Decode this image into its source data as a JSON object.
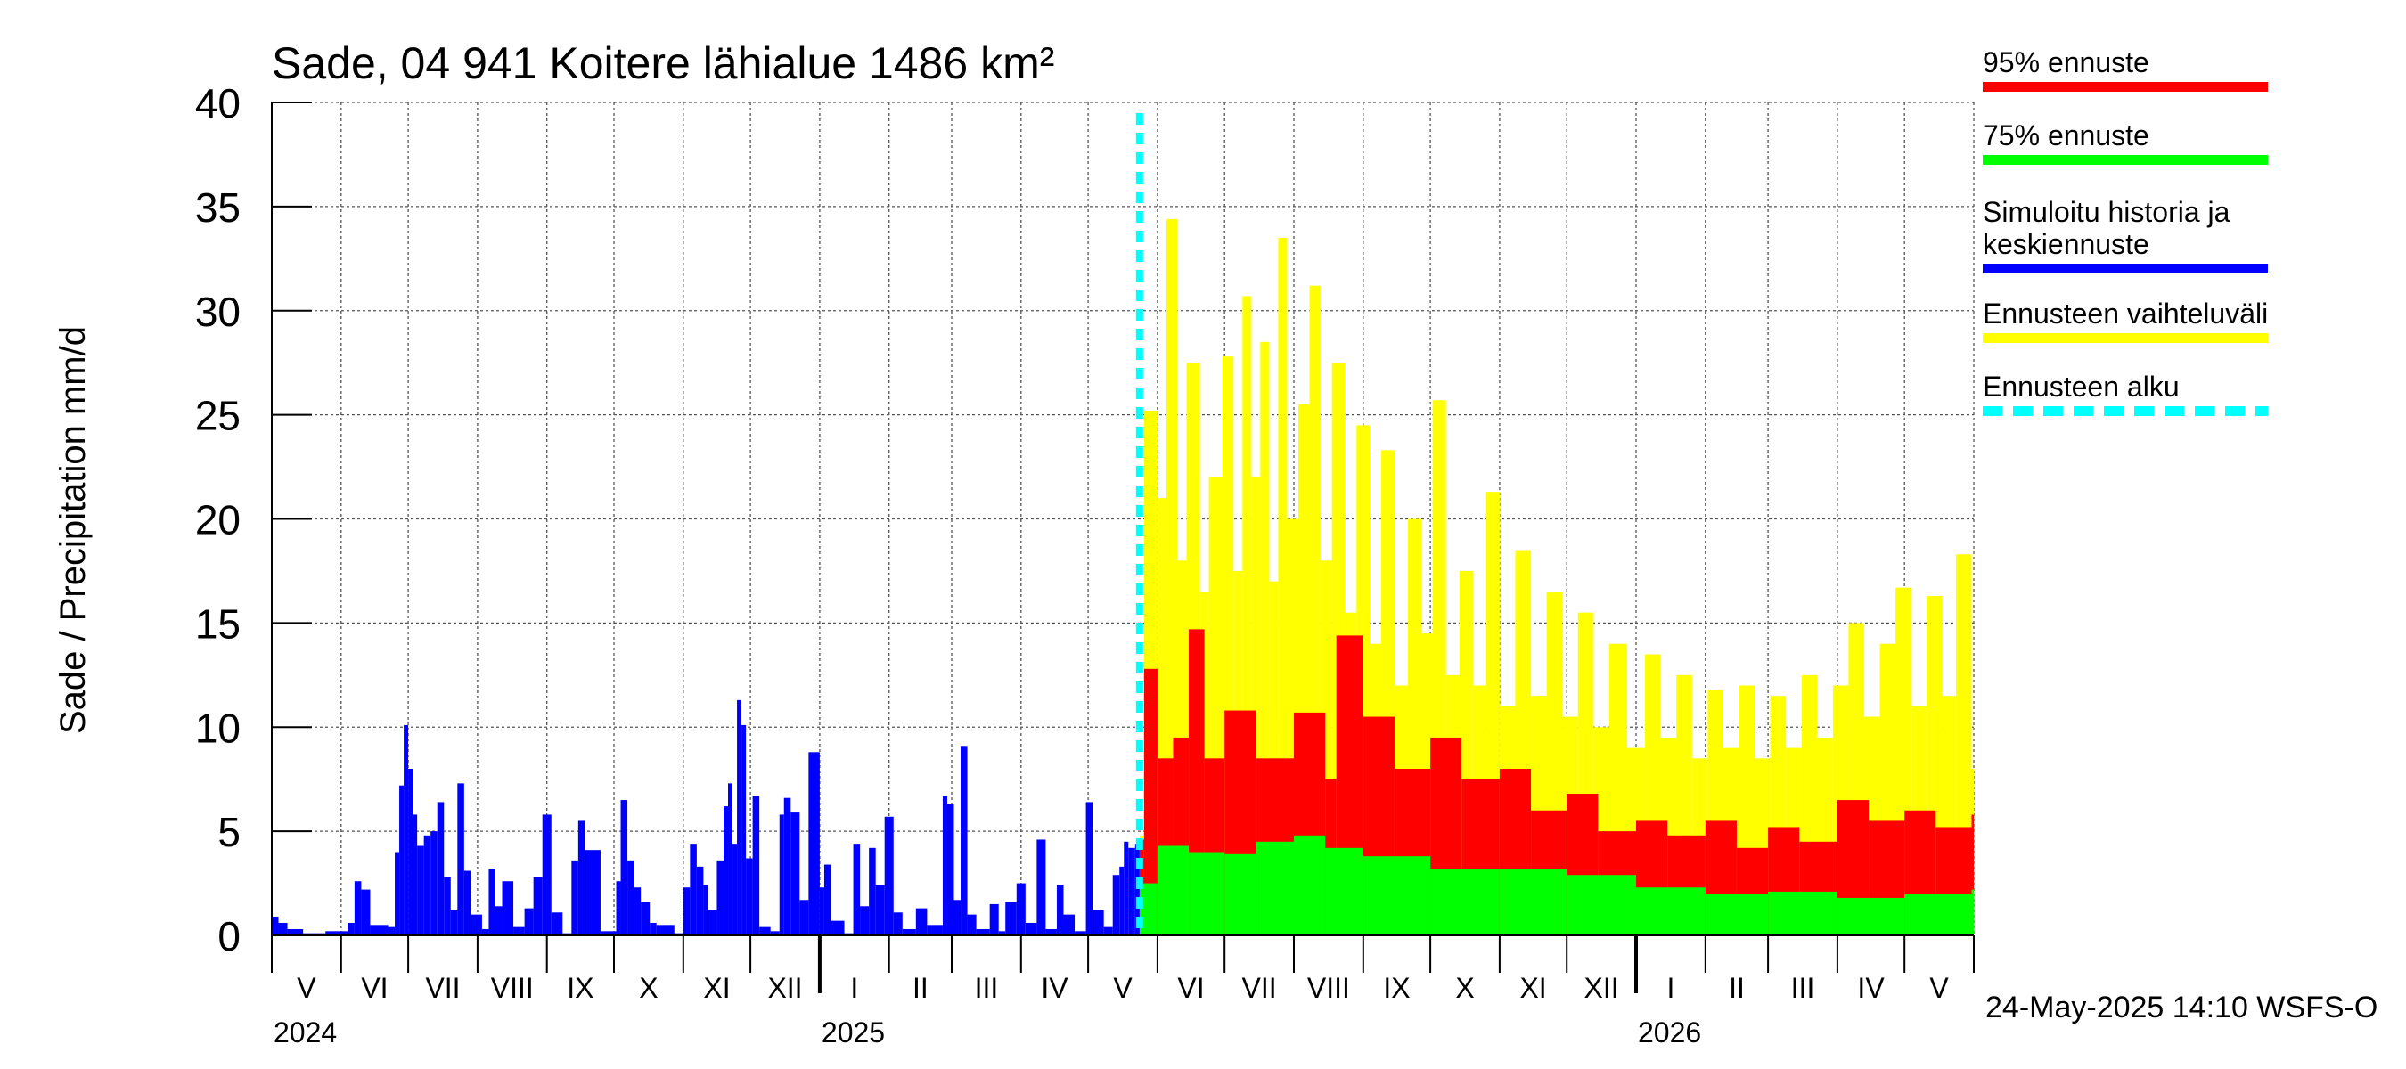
{
  "chart_data": {
    "type": "bar",
    "title": "Sade, 04 941 Koitere lähialue 1486 km²",
    "ylabel": "Sade / Precipitation   mm/d",
    "ylim": [
      0,
      40
    ],
    "yticks": [
      "0",
      "5",
      "10",
      "15",
      "20",
      "25",
      "30",
      "35",
      "40"
    ],
    "grid": true,
    "x_domain": [
      "2024-05-01",
      "2026-05-31"
    ],
    "month_labels": [
      "V",
      "VI",
      "VII",
      "VIII",
      "IX",
      "X",
      "XI",
      "XII",
      "I",
      "II",
      "III",
      "IV",
      "V",
      "VI",
      "VII",
      "VIII",
      "IX",
      "X",
      "XI",
      "XII",
      "I",
      "II",
      "III",
      "IV",
      "V"
    ],
    "year_labels": [
      "2024",
      "2025",
      "2026"
    ],
    "forecast_start": "2025-05-24",
    "series": [
      {
        "name": "Simuloitu historia ja keskiennuste",
        "color": "#0000ff",
        "points": [
          [
            "2024-05-01",
            0.9
          ],
          [
            "2024-05-04",
            0.6
          ],
          [
            "2024-05-08",
            0.3
          ],
          [
            "2024-05-15",
            0.1
          ],
          [
            "2024-05-25",
            0.2
          ],
          [
            "2024-06-04",
            0.6
          ],
          [
            "2024-06-07",
            2.6
          ],
          [
            "2024-06-10",
            2.2
          ],
          [
            "2024-06-14",
            0.5
          ],
          [
            "2024-06-22",
            0.4
          ],
          [
            "2024-06-25",
            4.0
          ],
          [
            "2024-06-27",
            7.2
          ],
          [
            "2024-06-29",
            10.1
          ],
          [
            "2024-07-01",
            8.0
          ],
          [
            "2024-07-03",
            5.8
          ],
          [
            "2024-07-05",
            4.3
          ],
          [
            "2024-07-08",
            4.8
          ],
          [
            "2024-07-11",
            5.0
          ],
          [
            "2024-07-14",
            6.4
          ],
          [
            "2024-07-17",
            2.8
          ],
          [
            "2024-07-20",
            1.2
          ],
          [
            "2024-07-23",
            7.3
          ],
          [
            "2024-07-26",
            3.1
          ],
          [
            "2024-07-29",
            1.0
          ],
          [
            "2024-08-03",
            0.3
          ],
          [
            "2024-08-06",
            3.2
          ],
          [
            "2024-08-09",
            1.4
          ],
          [
            "2024-08-12",
            2.6
          ],
          [
            "2024-08-17",
            0.4
          ],
          [
            "2024-08-22",
            1.3
          ],
          [
            "2024-08-26",
            2.8
          ],
          [
            "2024-08-30",
            5.8
          ],
          [
            "2024-09-03",
            1.1
          ],
          [
            "2024-09-08",
            0.1
          ],
          [
            "2024-09-12",
            3.6
          ],
          [
            "2024-09-15",
            5.5
          ],
          [
            "2024-09-18",
            4.1
          ],
          [
            "2024-09-25",
            0.2
          ],
          [
            "2024-10-02",
            2.6
          ],
          [
            "2024-10-04",
            6.5
          ],
          [
            "2024-10-07",
            3.6
          ],
          [
            "2024-10-10",
            2.3
          ],
          [
            "2024-10-13",
            1.6
          ],
          [
            "2024-10-17",
            0.6
          ],
          [
            "2024-10-20",
            0.5
          ],
          [
            "2024-10-28",
            0.1
          ],
          [
            "2024-11-01",
            2.3
          ],
          [
            "2024-11-04",
            4.4
          ],
          [
            "2024-11-07",
            3.3
          ],
          [
            "2024-11-10",
            2.4
          ],
          [
            "2024-11-12",
            1.2
          ],
          [
            "2024-11-16",
            3.6
          ],
          [
            "2024-11-19",
            6.2
          ],
          [
            "2024-11-21",
            7.3
          ],
          [
            "2024-11-23",
            4.4
          ],
          [
            "2024-11-25",
            11.3
          ],
          [
            "2024-11-27",
            10.1
          ],
          [
            "2024-11-29",
            3.7
          ],
          [
            "2024-12-02",
            6.7
          ],
          [
            "2024-12-05",
            0.4
          ],
          [
            "2024-12-10",
            0.2
          ],
          [
            "2024-12-14",
            5.8
          ],
          [
            "2024-12-16",
            6.6
          ],
          [
            "2024-12-19",
            5.9
          ],
          [
            "2024-12-23",
            1.7
          ],
          [
            "2024-12-27",
            8.8
          ],
          [
            "2025-01-01",
            2.3
          ],
          [
            "2025-01-03",
            3.4
          ],
          [
            "2025-01-06",
            0.7
          ],
          [
            "2025-01-12",
            0.1
          ],
          [
            "2025-01-16",
            4.4
          ],
          [
            "2025-01-19",
            1.4
          ],
          [
            "2025-01-23",
            4.2
          ],
          [
            "2025-01-26",
            2.4
          ],
          [
            "2025-01-30",
            5.7
          ],
          [
            "2025-02-03",
            1.1
          ],
          [
            "2025-02-07",
            0.3
          ],
          [
            "2025-02-13",
            1.3
          ],
          [
            "2025-02-18",
            0.5
          ],
          [
            "2025-02-25",
            6.7
          ],
          [
            "2025-02-27",
            6.3
          ],
          [
            "2025-03-02",
            1.7
          ],
          [
            "2025-03-05",
            9.1
          ],
          [
            "2025-03-08",
            1.0
          ],
          [
            "2025-03-12",
            0.3
          ],
          [
            "2025-03-18",
            1.5
          ],
          [
            "2025-03-22",
            0.2
          ],
          [
            "2025-03-25",
            1.6
          ],
          [
            "2025-03-30",
            2.5
          ],
          [
            "2025-04-03",
            0.6
          ],
          [
            "2025-04-08",
            4.6
          ],
          [
            "2025-04-12",
            0.3
          ],
          [
            "2025-04-17",
            2.4
          ],
          [
            "2025-04-20",
            1.0
          ],
          [
            "2025-04-25",
            0.2
          ],
          [
            "2025-04-30",
            6.4
          ],
          [
            "2025-05-03",
            1.2
          ],
          [
            "2025-05-08",
            0.4
          ],
          [
            "2025-05-12",
            2.9
          ],
          [
            "2025-05-15",
            3.3
          ],
          [
            "2025-05-17",
            4.5
          ],
          [
            "2025-05-19",
            4.2
          ],
          [
            "2025-05-22",
            4.4
          ]
        ]
      },
      {
        "name": "95% ennuste",
        "color": "#ff0000",
        "points": [
          [
            "2025-05-24",
            4.6
          ],
          [
            "2025-05-26",
            12.8
          ],
          [
            "2025-06-01",
            8.5
          ],
          [
            "2025-06-08",
            9.5
          ],
          [
            "2025-06-15",
            14.7
          ],
          [
            "2025-06-22",
            8.5
          ],
          [
            "2025-07-01",
            10.8
          ],
          [
            "2025-07-15",
            8.5
          ],
          [
            "2025-08-01",
            10.7
          ],
          [
            "2025-08-15",
            7.5
          ],
          [
            "2025-08-20",
            14.4
          ],
          [
            "2025-09-01",
            10.5
          ],
          [
            "2025-09-15",
            8.0
          ],
          [
            "2025-10-01",
            9.5
          ],
          [
            "2025-10-15",
            7.5
          ],
          [
            "2025-11-01",
            8.0
          ],
          [
            "2025-11-15",
            6.0
          ],
          [
            "2025-12-01",
            6.8
          ],
          [
            "2025-12-15",
            5.0
          ],
          [
            "2026-01-01",
            5.5
          ],
          [
            "2026-01-15",
            4.8
          ],
          [
            "2026-02-01",
            5.5
          ],
          [
            "2026-02-15",
            4.2
          ],
          [
            "2026-03-01",
            5.2
          ],
          [
            "2026-03-15",
            4.5
          ],
          [
            "2026-04-01",
            6.5
          ],
          [
            "2026-04-15",
            5.5
          ],
          [
            "2026-05-01",
            6.0
          ],
          [
            "2026-05-15",
            5.2
          ],
          [
            "2026-05-31",
            5.8
          ]
        ]
      },
      {
        "name": "75% ennuste",
        "color": "#00ff00",
        "points": [
          [
            "2025-05-24",
            2.5
          ],
          [
            "2025-06-01",
            4.3
          ],
          [
            "2025-06-15",
            4.0
          ],
          [
            "2025-07-01",
            3.9
          ],
          [
            "2025-07-15",
            4.5
          ],
          [
            "2025-08-01",
            4.8
          ],
          [
            "2025-08-15",
            4.2
          ],
          [
            "2025-09-01",
            3.8
          ],
          [
            "2025-10-01",
            3.2
          ],
          [
            "2025-11-01",
            3.2
          ],
          [
            "2025-12-01",
            2.9
          ],
          [
            "2026-01-01",
            2.3
          ],
          [
            "2026-02-01",
            2.0
          ],
          [
            "2026-03-01",
            2.1
          ],
          [
            "2026-04-01",
            1.8
          ],
          [
            "2026-05-01",
            2.0
          ],
          [
            "2026-05-31",
            2.2
          ]
        ]
      },
      {
        "name": "Ennusteen vaihteluväli",
        "color": "#ffff00",
        "points": [
          [
            "2025-05-24",
            4.8
          ],
          [
            "2025-05-26",
            25.2
          ],
          [
            "2025-06-01",
            21.0
          ],
          [
            "2025-06-05",
            34.4
          ],
          [
            "2025-06-10",
            18.0
          ],
          [
            "2025-06-14",
            27.5
          ],
          [
            "2025-06-20",
            16.5
          ],
          [
            "2025-06-24",
            22.0
          ],
          [
            "2025-06-30",
            27.8
          ],
          [
            "2025-07-05",
            17.5
          ],
          [
            "2025-07-09",
            30.7
          ],
          [
            "2025-07-13",
            22.0
          ],
          [
            "2025-07-17",
            28.5
          ],
          [
            "2025-07-21",
            17.0
          ],
          [
            "2025-07-25",
            33.5
          ],
          [
            "2025-07-29",
            20.0
          ],
          [
            "2025-08-03",
            25.5
          ],
          [
            "2025-08-08",
            31.2
          ],
          [
            "2025-08-13",
            18.0
          ],
          [
            "2025-08-18",
            27.5
          ],
          [
            "2025-08-24",
            15.5
          ],
          [
            "2025-08-29",
            24.5
          ],
          [
            "2025-09-04",
            14.0
          ],
          [
            "2025-09-09",
            23.3
          ],
          [
            "2025-09-15",
            12.0
          ],
          [
            "2025-09-21",
            20.0
          ],
          [
            "2025-09-27",
            14.5
          ],
          [
            "2025-10-02",
            25.7
          ],
          [
            "2025-10-08",
            12.5
          ],
          [
            "2025-10-14",
            17.5
          ],
          [
            "2025-10-20",
            12.0
          ],
          [
            "2025-10-26",
            21.3
          ],
          [
            "2025-11-01",
            11.0
          ],
          [
            "2025-11-08",
            18.5
          ],
          [
            "2025-11-15",
            11.5
          ],
          [
            "2025-11-22",
            16.5
          ],
          [
            "2025-11-29",
            10.5
          ],
          [
            "2025-12-06",
            15.5
          ],
          [
            "2025-12-13",
            10.0
          ],
          [
            "2025-12-20",
            14.0
          ],
          [
            "2025-12-28",
            9.0
          ],
          [
            "2026-01-05",
            13.5
          ],
          [
            "2026-01-12",
            9.5
          ],
          [
            "2026-01-19",
            12.5
          ],
          [
            "2026-01-26",
            8.5
          ],
          [
            "2026-02-02",
            11.8
          ],
          [
            "2026-02-09",
            9.0
          ],
          [
            "2026-02-16",
            12.0
          ],
          [
            "2026-02-23",
            8.5
          ],
          [
            "2026-03-02",
            11.5
          ],
          [
            "2026-03-09",
            9.0
          ],
          [
            "2026-03-16",
            12.5
          ],
          [
            "2026-03-23",
            9.5
          ],
          [
            "2026-03-30",
            12.0
          ],
          [
            "2026-04-06",
            15.0
          ],
          [
            "2026-04-13",
            10.5
          ],
          [
            "2026-04-20",
            14.0
          ],
          [
            "2026-04-27",
            16.7
          ],
          [
            "2026-05-04",
            11.0
          ],
          [
            "2026-05-11",
            16.3
          ],
          [
            "2026-05-18",
            11.5
          ],
          [
            "2026-05-24",
            18.3
          ],
          [
            "2026-05-31",
            8.0
          ]
        ]
      }
    ]
  },
  "legend": [
    {
      "label": "95% ennuste",
      "color": "#ff0000",
      "style": "solid"
    },
    {
      "label": "75% ennuste",
      "color": "#00ff00",
      "style": "solid"
    },
    {
      "label": "Simuloitu historia ja keskiennuste",
      "color": "#0000ff",
      "style": "solid"
    },
    {
      "label": "Ennusteen vaihteluväli",
      "color": "#ffff00",
      "style": "solid"
    },
    {
      "label": "Ennusteen alku",
      "color": "#00ffff",
      "style": "dashed"
    }
  ],
  "footer": "24-May-2025 14:10 WSFS-O"
}
